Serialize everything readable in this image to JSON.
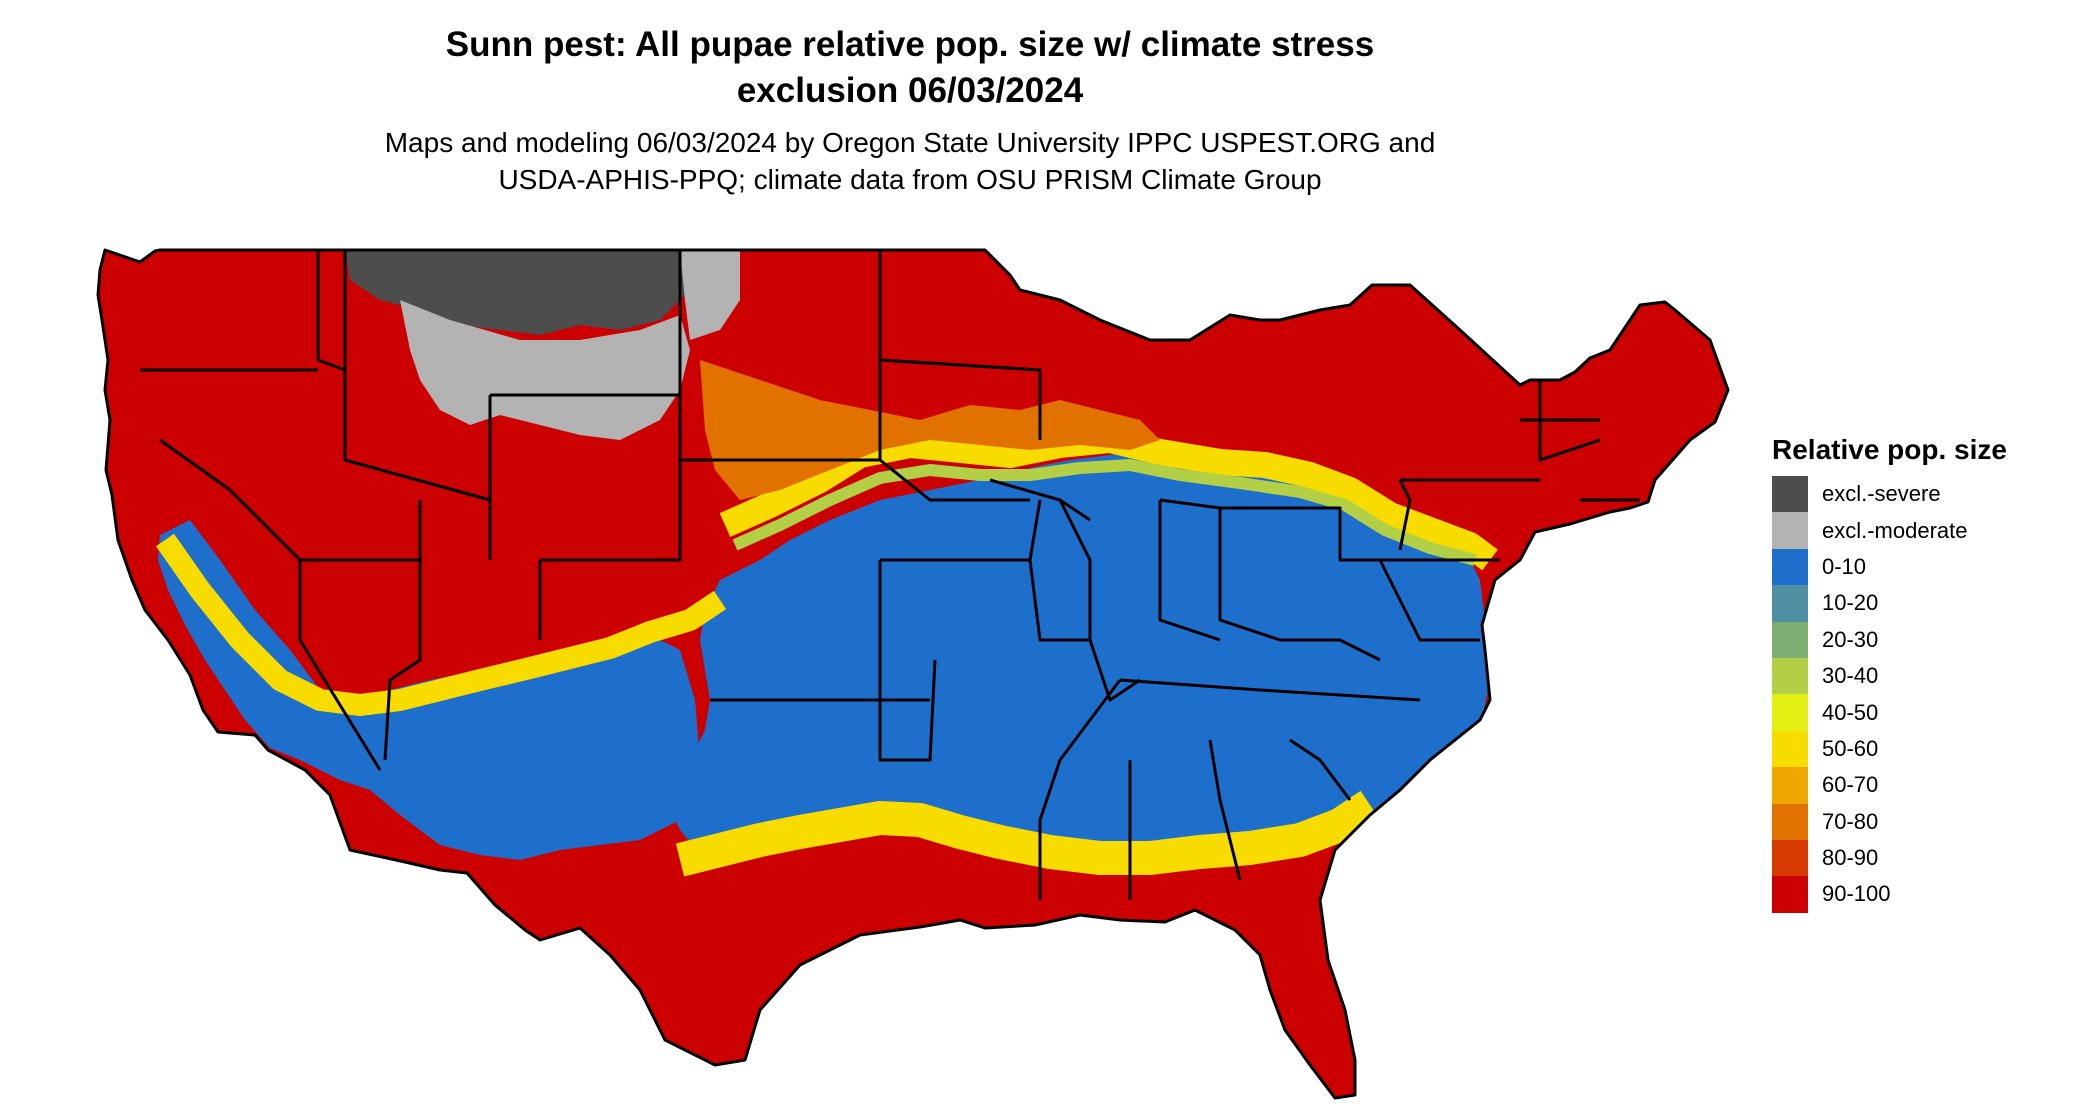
{
  "title_lines": [
    "Sunn pest: All pupae relative pop. size w/ climate stress",
    "exclusion 06/03/2024"
  ],
  "subtitle_lines": [
    "Maps and modeling 06/03/2024 by Oregon State University IPPC USPEST.ORG and",
    "USDA-APHIS-PPQ; climate data from OSU PRISM Climate Group"
  ],
  "legend": {
    "title": "Relative pop. size",
    "items": [
      {
        "label": "excl.-severe",
        "color": "#4d4d4d"
      },
      {
        "label": "excl.-moderate",
        "color": "#b3b3b3"
      },
      {
        "label": "0-10",
        "color": "#1e6fcc"
      },
      {
        "label": "10-20",
        "color": "#4f8fa3"
      },
      {
        "label": "20-30",
        "color": "#7fae72"
      },
      {
        "label": "30-40",
        "color": "#b2cf45"
      },
      {
        "label": "40-50",
        "color": "#e3ef13"
      },
      {
        "label": "50-60",
        "color": "#f8dc00"
      },
      {
        "label": "60-70",
        "color": "#efa700"
      },
      {
        "label": "70-80",
        "color": "#e27200"
      },
      {
        "label": "80-90",
        "color": "#d63a00"
      },
      {
        "label": "90-100",
        "color": "#cc0000"
      }
    ]
  },
  "map_colors": {
    "red": "#cc0000",
    "blue": "#1e6fcc",
    "yellow": "#f8dc00",
    "green": "#b2cf45",
    "orange": "#e27200",
    "dark_gray": "#4d4d4d",
    "light_gray": "#b3b3b3"
  }
}
